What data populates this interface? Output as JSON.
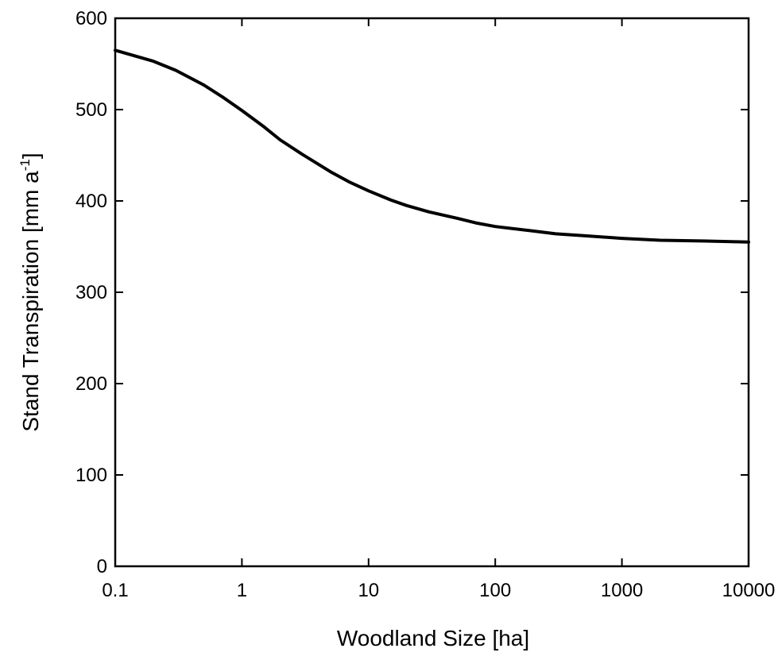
{
  "chart_data": {
    "type": "line",
    "title": "",
    "xlabel": "Woodland Size [ha]",
    "ylabel": {
      "prefix": "Stand Transpiration [mm a",
      "superscript": "-1",
      "suffix": "]"
    },
    "xscale": "log",
    "xlim": [
      0.1,
      10000
    ],
    "ylim": [
      0,
      600
    ],
    "xticks": [
      {
        "value": 0.1,
        "label": "0.1"
      },
      {
        "value": 1,
        "label": "1"
      },
      {
        "value": 10,
        "label": "10"
      },
      {
        "value": 100,
        "label": "100"
      },
      {
        "value": 1000,
        "label": "1000"
      },
      {
        "value": 10000,
        "label": "10000"
      }
    ],
    "yticks": [
      {
        "value": 0,
        "label": "0"
      },
      {
        "value": 100,
        "label": "100"
      },
      {
        "value": 200,
        "label": "200"
      },
      {
        "value": 300,
        "label": "300"
      },
      {
        "value": 400,
        "label": "400"
      },
      {
        "value": 500,
        "label": "500"
      },
      {
        "value": 600,
        "label": "600"
      }
    ],
    "grid": false,
    "legend": "none",
    "series": [
      {
        "color": "#000000",
        "x": [
          0.1,
          0.2,
          0.3,
          0.5,
          0.7,
          1,
          1.5,
          2,
          3,
          5,
          7,
          10,
          15,
          20,
          30,
          50,
          70,
          100,
          200,
          300,
          500,
          1000,
          2000,
          5000,
          10000
        ],
        "y": [
          565,
          553,
          543,
          527,
          514,
          499,
          481,
          467,
          451,
          432,
          421,
          411,
          401,
          395,
          388,
          381,
          376,
          372,
          367,
          364,
          362,
          359,
          357,
          356,
          355
        ]
      }
    ]
  }
}
